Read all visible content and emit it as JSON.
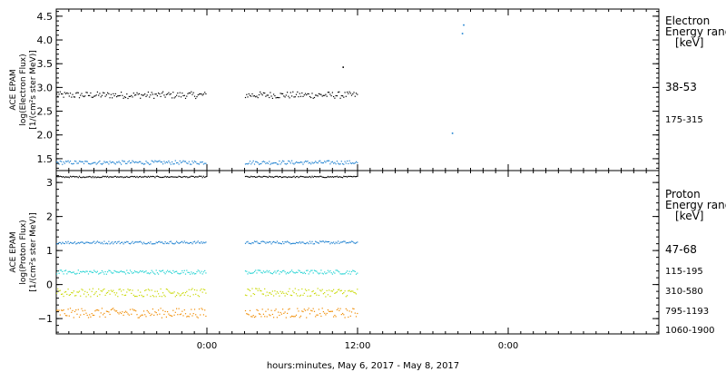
{
  "xlabel": "hours:minutes, May  6, 2017 - May  8, 2017",
  "chart_data": [
    {
      "type": "scatter",
      "panel": "electron",
      "ylabel_lines": [
        "ACE EPAM",
        "log(Electron Flux)",
        "[1/(cm²s ster MeV)]"
      ],
      "ylim": [
        1.25,
        4.65
      ],
      "yticks": [
        1.5,
        2.0,
        2.5,
        3.0,
        3.5,
        4.0,
        4.5
      ],
      "ytick_labels": [
        "1.5",
        "2.0",
        "2.5",
        "3.0",
        "3.5",
        "4.0",
        "4.5"
      ],
      "legend_title_lines": [
        "Electron",
        "Energy ranges",
        "[keV]"
      ],
      "series": [
        {
          "name": "38-53",
          "color": "#000000",
          "base": 2.85,
          "jitter": 0.07,
          "outliers": [
            [
              22.8,
              3.44
            ]
          ]
        },
        {
          "name": "175-315",
          "color": "#1a7fd0",
          "base": 1.43,
          "jitter": 0.04,
          "outliers": [
            [
              31.5,
              2.05
            ],
            [
              32.3,
              4.15
            ],
            [
              32.4,
              4.33
            ]
          ]
        }
      ]
    },
    {
      "type": "scatter",
      "panel": "proton",
      "ylabel_lines": [
        "ACE EPAM",
        "log(Proton Flux)",
        "[1/(cm²s ster MeV)]"
      ],
      "ylim": [
        -1.45,
        3.35
      ],
      "yticks": [
        -1,
        0,
        1,
        2,
        3
      ],
      "ytick_labels": [
        "−1",
        "0",
        "1",
        "2",
        "3"
      ],
      "legend_title_lines": [
        "Proton",
        "Energy ranges",
        "[keV]"
      ],
      "series": [
        {
          "name": "47-68",
          "color": "#000000",
          "base": 3.18,
          "jitter": 0.02,
          "outliers": []
        },
        {
          "name": "115-195",
          "color": "#1a7fd0",
          "base": 1.25,
          "jitter": 0.04,
          "outliers": []
        },
        {
          "name": "310-580",
          "color": "#22d3d3",
          "base": 0.38,
          "jitter": 0.06,
          "outliers": []
        },
        {
          "name": "795-1193",
          "color": "#c8d800",
          "base": -0.22,
          "jitter": 0.12,
          "outliers": []
        },
        {
          "name": "1060-1900",
          "color": "#f08c00",
          "base": -0.82,
          "jitter": 0.14,
          "outliers": []
        }
      ]
    }
  ],
  "x_axis": {
    "range_hours": [
      0,
      48
    ],
    "ticks": [
      12,
      24,
      36,
      48
    ],
    "tick_labels": [
      "0:00",
      "12:00",
      "0:00"
    ],
    "tick_label_hours": [
      12,
      24,
      36
    ],
    "data_gaps": [
      [
        11.9,
        15.0
      ],
      [
        24.0,
        48.0
      ]
    ]
  }
}
